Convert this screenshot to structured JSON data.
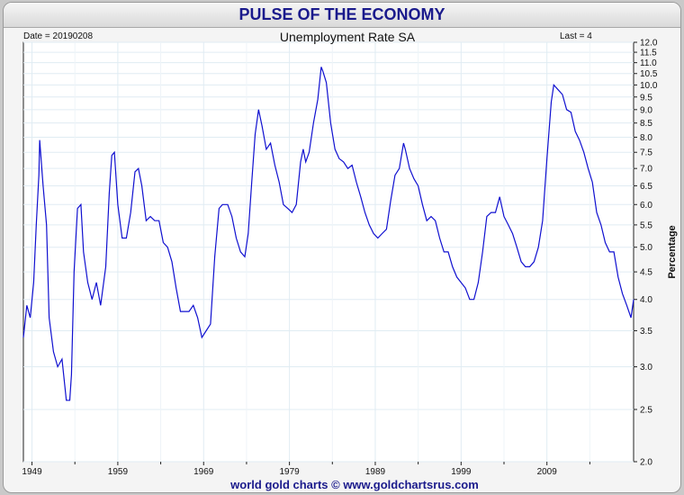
{
  "header": {
    "title": "PULSE OF THE ECONOMY"
  },
  "chart_data": {
    "type": "line",
    "title": "Unemployment Rate SA",
    "date_label": "Date = 20190208",
    "last_label": "Last = 4",
    "ylabel": "Percentage",
    "footer": "world gold charts © www.goldchartsrus.com",
    "y_scale": "log",
    "ylim": [
      2.0,
      12.0
    ],
    "xlim": [
      1948,
      2019.1
    ],
    "y_ticks": [
      2.0,
      2.5,
      3.0,
      3.5,
      4.0,
      4.5,
      5.0,
      5.5,
      6.0,
      6.5,
      7.0,
      7.5,
      8.0,
      8.5,
      9.0,
      9.5,
      10.0,
      10.5,
      11.0,
      11.5,
      12.0
    ],
    "x_ticks": [
      "1949",
      "1959",
      "1969",
      "1979",
      "1989",
      "1999",
      "2009"
    ],
    "grid": true,
    "line_color": "#1010d0",
    "series": [
      {
        "x": [
          1948.0,
          1948.4,
          1948.8,
          1949.2,
          1949.5,
          1949.8,
          1949.9,
          1950.3,
          1950.7,
          1951.0,
          1951.5,
          1952.0,
          1952.5,
          1953.0,
          1953.4,
          1953.6,
          1953.9,
          1954.3,
          1954.7,
          1955.0,
          1955.5,
          1956.0,
          1956.5,
          1957.0,
          1957.6,
          1958.0,
          1958.3,
          1958.6,
          1959.0,
          1959.5,
          1960.0,
          1960.5,
          1961.0,
          1961.4,
          1961.8,
          1962.3,
          1962.8,
          1963.3,
          1963.8,
          1964.3,
          1964.8,
          1965.3,
          1965.8,
          1966.3,
          1966.8,
          1967.3,
          1967.8,
          1968.3,
          1968.8,
          1969.3,
          1969.8,
          1970.3,
          1970.8,
          1971.2,
          1971.8,
          1972.3,
          1972.8,
          1973.3,
          1973.8,
          1974.2,
          1974.6,
          1975.0,
          1975.4,
          1975.8,
          1976.3,
          1976.8,
          1977.3,
          1977.8,
          1978.3,
          1978.8,
          1979.3,
          1979.8,
          1980.3,
          1980.6,
          1980.9,
          1981.3,
          1981.8,
          1982.3,
          1982.7,
          1982.9,
          1983.3,
          1983.8,
          1984.3,
          1984.8,
          1985.3,
          1985.8,
          1986.3,
          1986.8,
          1987.3,
          1987.8,
          1988.3,
          1988.8,
          1989.3,
          1989.8,
          1990.3,
          1990.8,
          1991.3,
          1991.8,
          1992.3,
          1992.5,
          1993.0,
          1993.5,
          1994.0,
          1994.5,
          1995.0,
          1995.5,
          1996.0,
          1996.5,
          1997.0,
          1997.5,
          1998.0,
          1998.5,
          1999.0,
          1999.5,
          2000.0,
          2000.5,
          2001.0,
          2001.5,
          2002.0,
          2002.5,
          2003.0,
          2003.5,
          2004.0,
          2004.5,
          2005.0,
          2005.5,
          2006.0,
          2006.5,
          2007.0,
          2007.5,
          2008.0,
          2008.5,
          2009.0,
          2009.5,
          2009.8,
          2010.3,
          2010.8,
          2011.3,
          2011.8,
          2012.3,
          2012.8,
          2013.3,
          2013.8,
          2014.3,
          2014.8,
          2015.3,
          2015.8,
          2016.3,
          2016.8,
          2017.3,
          2017.8,
          2018.3,
          2018.8,
          2019.1
        ],
        "values": [
          3.4,
          3.9,
          3.7,
          4.3,
          5.5,
          6.8,
          7.9,
          6.5,
          5.5,
          3.7,
          3.2,
          3.0,
          3.1,
          2.6,
          2.6,
          2.9,
          4.5,
          5.9,
          6.0,
          4.9,
          4.3,
          4.0,
          4.3,
          3.9,
          4.6,
          6.3,
          7.4,
          7.5,
          6.0,
          5.2,
          5.2,
          5.8,
          6.9,
          7.0,
          6.5,
          5.6,
          5.7,
          5.6,
          5.6,
          5.1,
          5.0,
          4.7,
          4.2,
          3.8,
          3.8,
          3.8,
          3.9,
          3.7,
          3.4,
          3.5,
          3.6,
          4.8,
          5.9,
          6.0,
          6.0,
          5.7,
          5.2,
          4.9,
          4.8,
          5.3,
          6.6,
          8.1,
          9.0,
          8.4,
          7.6,
          7.8,
          7.1,
          6.6,
          6.0,
          5.9,
          5.8,
          6.0,
          7.2,
          7.6,
          7.2,
          7.5,
          8.5,
          9.4,
          10.8,
          10.6,
          10.1,
          8.5,
          7.6,
          7.3,
          7.2,
          7.0,
          7.1,
          6.6,
          6.2,
          5.8,
          5.5,
          5.3,
          5.2,
          5.3,
          5.4,
          6.1,
          6.8,
          7.0,
          7.8,
          7.6,
          7.0,
          6.7,
          6.5,
          6.0,
          5.6,
          5.7,
          5.6,
          5.2,
          4.9,
          4.9,
          4.6,
          4.4,
          4.3,
          4.2,
          4.0,
          4.0,
          4.3,
          4.9,
          5.7,
          5.8,
          5.8,
          6.2,
          5.7,
          5.5,
          5.3,
          5.0,
          4.7,
          4.6,
          4.6,
          4.7,
          5.0,
          5.6,
          7.3,
          9.3,
          10.0,
          9.8,
          9.6,
          9.0,
          8.9,
          8.2,
          7.9,
          7.5,
          7.0,
          6.6,
          5.8,
          5.5,
          5.1,
          4.9,
          4.9,
          4.4,
          4.1,
          3.9,
          3.7,
          4.0
        ]
      }
    ]
  }
}
